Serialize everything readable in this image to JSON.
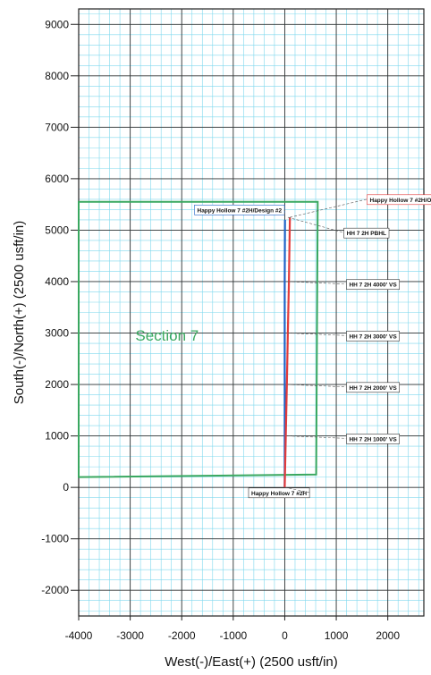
{
  "chart_data": {
    "type": "line",
    "title": "",
    "xlabel": "West(-)/East(+) (2500 usft/in)",
    "ylabel": "South(-)/North(+) (2500 usft/in)",
    "xlim": [
      -4000,
      2700
    ],
    "ylim": [
      -2500,
      9300
    ],
    "x_ticks": [
      -4000,
      -3000,
      -2000,
      -1000,
      0,
      1000,
      2000
    ],
    "y_ticks": [
      -2000,
      -1000,
      0,
      1000,
      2000,
      3000,
      4000,
      5000,
      6000,
      7000,
      8000,
      9000
    ],
    "x_tick_labels": [
      "-4000",
      "-3000",
      "-2000",
      "-1000",
      "0",
      "1000",
      "2000"
    ],
    "y_tick_labels": [
      "-2000",
      "-1000",
      "0",
      "1000",
      "2000",
      "3000",
      "4000",
      "5000",
      "6000",
      "7000",
      "8000",
      "9000"
    ],
    "grid": true,
    "series": [
      {
        "name": "Happy Hollow 7 #2H/Design #2",
        "color": "#1f63c8",
        "points": [
          [
            0,
            0
          ],
          [
            0,
            1000
          ],
          [
            0,
            2000
          ],
          [
            0,
            3000
          ],
          [
            0,
            4000
          ],
          [
            5,
            5200
          ]
        ]
      },
      {
        "name": "Happy Hollow 7 #2H/OH",
        "color": "#e33b3b",
        "points": [
          [
            0,
            0
          ],
          [
            20,
            1000
          ],
          [
            40,
            2000
          ],
          [
            60,
            3000
          ],
          [
            80,
            4000
          ],
          [
            100,
            5250
          ]
        ]
      }
    ],
    "section": {
      "label": "Section 7",
      "color": "#3aa860",
      "polygon": [
        [
          -4000,
          200
        ],
        [
          610,
          250
        ],
        [
          640,
          5550
        ],
        [
          -4000,
          5550
        ]
      ]
    },
    "annotations": [
      {
        "label": "Happy Hollow 7 #2H/Design #2",
        "color": "#1f63c8",
        "anchor": [
          5,
          5200
        ],
        "text_at": [
          -1700,
          5350
        ]
      },
      {
        "label": "Happy Hollow 7 #2H/OH",
        "color": "#e33b3b",
        "anchor": [
          100,
          5250
        ],
        "text_at": [
          1650,
          5550
        ]
      },
      {
        "label": "HH 7 2H PBHL",
        "color": "#111111",
        "anchor": [
          60,
          5250
        ],
        "text_at": [
          1200,
          4900
        ]
      },
      {
        "label": "HH 7 2H 4000' VS",
        "color": "#111111",
        "anchor": [
          60,
          4000
        ],
        "text_at": [
          1250,
          3900
        ]
      },
      {
        "label": "HH 7 2H 3000' VS",
        "color": "#111111",
        "anchor": [
          60,
          3000
        ],
        "text_at": [
          1250,
          2900
        ]
      },
      {
        "label": "HH 7 2H 2000' VS",
        "color": "#111111",
        "anchor": [
          60,
          2000
        ],
        "text_at": [
          1250,
          1900
        ]
      },
      {
        "label": "HH 7 2H 1000' VS",
        "color": "#111111",
        "anchor": [
          60,
          1000
        ],
        "text_at": [
          1250,
          900
        ]
      },
      {
        "label": "Happy Hollow 7 #2H",
        "color": "#111111",
        "anchor": [
          0,
          0
        ],
        "text_at": [
          -650,
          -150
        ]
      }
    ]
  }
}
